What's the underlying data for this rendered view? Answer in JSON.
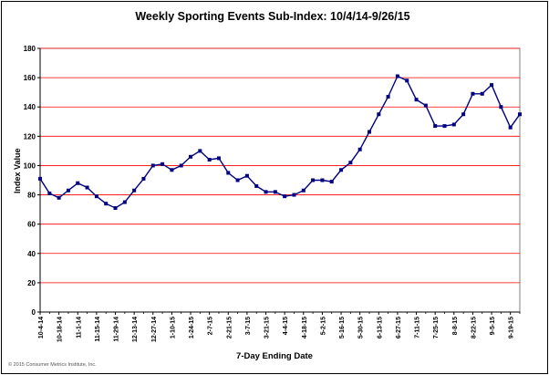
{
  "chart_data": {
    "type": "line",
    "title": "Weekly Sporting Events Sub-Index: 10/4/14-9/26/15",
    "xlabel": "7-Day Ending Date",
    "ylabel": "Index Value",
    "ylim": [
      0,
      180
    ],
    "yticks": [
      0,
      20,
      40,
      60,
      80,
      100,
      120,
      140,
      160,
      180
    ],
    "grid": "horizontal",
    "x_tick_labels": [
      "10-4-14",
      "10-18-14",
      "11-1-14",
      "11-15-14",
      "11-29-14",
      "12-13-14",
      "12-27-14",
      "1-10-15",
      "1-24-15",
      "2-7-15",
      "2-21-15",
      "3-7-15",
      "3-21-15",
      "4-4-15",
      "4-18-15",
      "5-2-15",
      "5-16-15",
      "5-30-15",
      "6-13-15",
      "6-27-15",
      "7-11-15",
      "7-25-15",
      "8-8-15",
      "8-22-15",
      "9-5-15",
      "9-19-15"
    ],
    "series": [
      {
        "color": "#000080",
        "values": [
          91,
          81,
          78,
          83,
          88,
          85,
          79,
          74,
          71,
          75,
          83,
          91,
          100,
          101,
          97,
          100,
          106,
          110,
          104,
          105,
          95,
          90,
          93,
          86,
          82,
          82,
          79,
          80,
          83,
          90,
          90,
          89,
          97,
          102,
          111,
          123,
          135,
          147,
          161,
          158,
          145,
          141,
          127,
          127,
          128,
          135,
          149,
          149,
          155,
          140,
          126,
          135
        ]
      }
    ]
  },
  "footer": {
    "copyright": "© 2015 Consumer Metrics Institute, Inc."
  }
}
